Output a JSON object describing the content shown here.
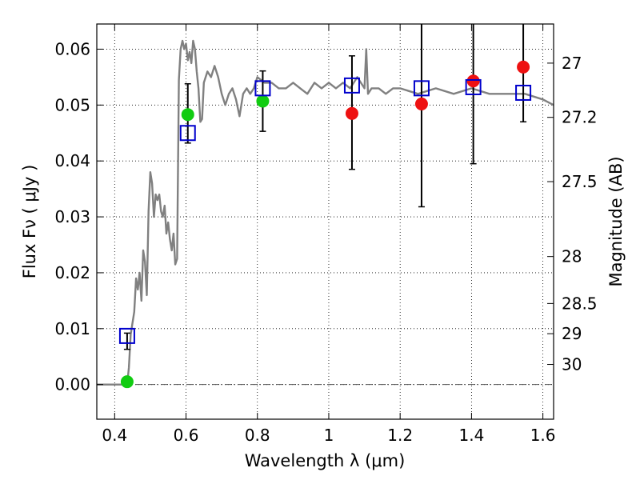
{
  "chart_data": {
    "type": "scatter",
    "title": "",
    "xlabel": "Wavelength  λ (μm)",
    "ylabel": "Flux  Fν  ( μJy )",
    "y2label": "Magnitude (AB)",
    "xlim": [
      0.35,
      1.63
    ],
    "ylim": [
      -0.0062,
      0.0645
    ],
    "grid": true,
    "legend": "none",
    "x_ticks": [
      0.4,
      0.6,
      0.8,
      1.0,
      1.2,
      1.4,
      1.6
    ],
    "x_tick_labels": [
      "0.4",
      "0.6",
      "0.8",
      "1",
      "1.2",
      "1.4",
      "1.6"
    ],
    "y_ticks": [
      0.0,
      0.01,
      0.02,
      0.03,
      0.04,
      0.05,
      0.06
    ],
    "y_tick_labels": [
      "0.00",
      "0.01",
      "0.02",
      "0.03",
      "0.04",
      "0.05",
      "0.06"
    ],
    "mag_ticks": [
      {
        "label": "27",
        "flux": 0.0575
      },
      {
        "label": "27.2",
        "flux": 0.0478
      },
      {
        "label": "27.5",
        "flux": 0.0363
      },
      {
        "label": "28",
        "flux": 0.0229
      },
      {
        "label": "28.5",
        "flux": 0.0145
      },
      {
        "label": "29",
        "flux": 0.0091
      },
      {
        "label": "30",
        "flux": 0.0036
      }
    ],
    "colors": {
      "model": "#808080",
      "green": "#11cc11",
      "red": "#ee1111",
      "box": "#0000cc",
      "errorbar": "#000000",
      "zero_line": "#555555"
    },
    "model_spectrum": {
      "x": [
        0.35,
        0.42,
        0.435,
        0.44,
        0.445,
        0.455,
        0.46,
        0.465,
        0.47,
        0.475,
        0.48,
        0.485,
        0.49,
        0.495,
        0.5,
        0.505,
        0.51,
        0.515,
        0.52,
        0.525,
        0.53,
        0.535,
        0.54,
        0.545,
        0.55,
        0.555,
        0.56,
        0.565,
        0.57,
        0.575,
        0.58,
        0.585,
        0.59,
        0.595,
        0.6,
        0.605,
        0.61,
        0.615,
        0.62,
        0.625,
        0.63,
        0.635,
        0.64,
        0.645,
        0.65,
        0.66,
        0.67,
        0.68,
        0.69,
        0.7,
        0.71,
        0.72,
        0.73,
        0.74,
        0.75,
        0.76,
        0.77,
        0.78,
        0.79,
        0.8,
        0.82,
        0.84,
        0.86,
        0.88,
        0.9,
        0.92,
        0.94,
        0.96,
        0.98,
        1.0,
        1.02,
        1.04,
        1.06,
        1.08,
        1.09,
        1.1,
        1.105,
        1.11,
        1.12,
        1.14,
        1.16,
        1.18,
        1.2,
        1.25,
        1.3,
        1.35,
        1.4,
        1.45,
        1.5,
        1.55,
        1.6,
        1.63
      ],
      "y": [
        0.0,
        0.0,
        0.0,
        0.003,
        0.009,
        0.013,
        0.019,
        0.017,
        0.02,
        0.015,
        0.024,
        0.022,
        0.016,
        0.031,
        0.038,
        0.036,
        0.03,
        0.034,
        0.033,
        0.034,
        0.031,
        0.03,
        0.032,
        0.027,
        0.029,
        0.026,
        0.024,
        0.027,
        0.0215,
        0.0225,
        0.0545,
        0.06,
        0.0615,
        0.06,
        0.061,
        0.058,
        0.0595,
        0.0575,
        0.0615,
        0.06,
        0.056,
        0.053,
        0.047,
        0.0475,
        0.054,
        0.056,
        0.055,
        0.057,
        0.055,
        0.052,
        0.05,
        0.052,
        0.053,
        0.051,
        0.048,
        0.052,
        0.053,
        0.052,
        0.053,
        0.055,
        0.054,
        0.054,
        0.053,
        0.053,
        0.054,
        0.053,
        0.052,
        0.054,
        0.053,
        0.054,
        0.053,
        0.054,
        0.053,
        0.055,
        0.054,
        0.053,
        0.06,
        0.052,
        0.053,
        0.053,
        0.052,
        0.053,
        0.053,
        0.052,
        0.053,
        0.052,
        0.053,
        0.052,
        0.052,
        0.052,
        0.051,
        0.05
      ]
    },
    "series": [
      {
        "marker": "circle",
        "color": "green",
        "points": [
          {
            "x": 0.435,
            "y": 0.0005,
            "err_low": 0.0063,
            "err_high": 0.0092
          },
          {
            "x": 0.605,
            "y": 0.0483
          },
          {
            "x": 0.815,
            "y": 0.0507
          }
        ]
      },
      {
        "marker": "circle",
        "color": "red",
        "points": [
          {
            "x": 1.065,
            "y": 0.0485,
            "err_low": 0.0385,
            "err_high": 0.0588
          },
          {
            "x": 1.26,
            "y": 0.0502,
            "err_low": 0.0318,
            "err_high": 0.065
          },
          {
            "x": 1.405,
            "y": 0.0543,
            "err_low": 0.0395,
            "err_high": 0.065
          },
          {
            "x": 1.545,
            "y": 0.0568,
            "err_low": 0.047,
            "err_high": 0.065
          }
        ]
      },
      {
        "marker": "square",
        "color": "box",
        "points": [
          {
            "x": 0.435,
            "y": 0.0087
          },
          {
            "x": 0.605,
            "y": 0.045,
            "err_low": 0.0432,
            "err_high": 0.0538
          },
          {
            "x": 0.815,
            "y": 0.053,
            "err_low": 0.0453,
            "err_high": 0.0561
          },
          {
            "x": 1.065,
            "y": 0.0535
          },
          {
            "x": 1.26,
            "y": 0.053
          },
          {
            "x": 1.405,
            "y": 0.0532
          },
          {
            "x": 1.545,
            "y": 0.0522
          }
        ]
      }
    ]
  }
}
